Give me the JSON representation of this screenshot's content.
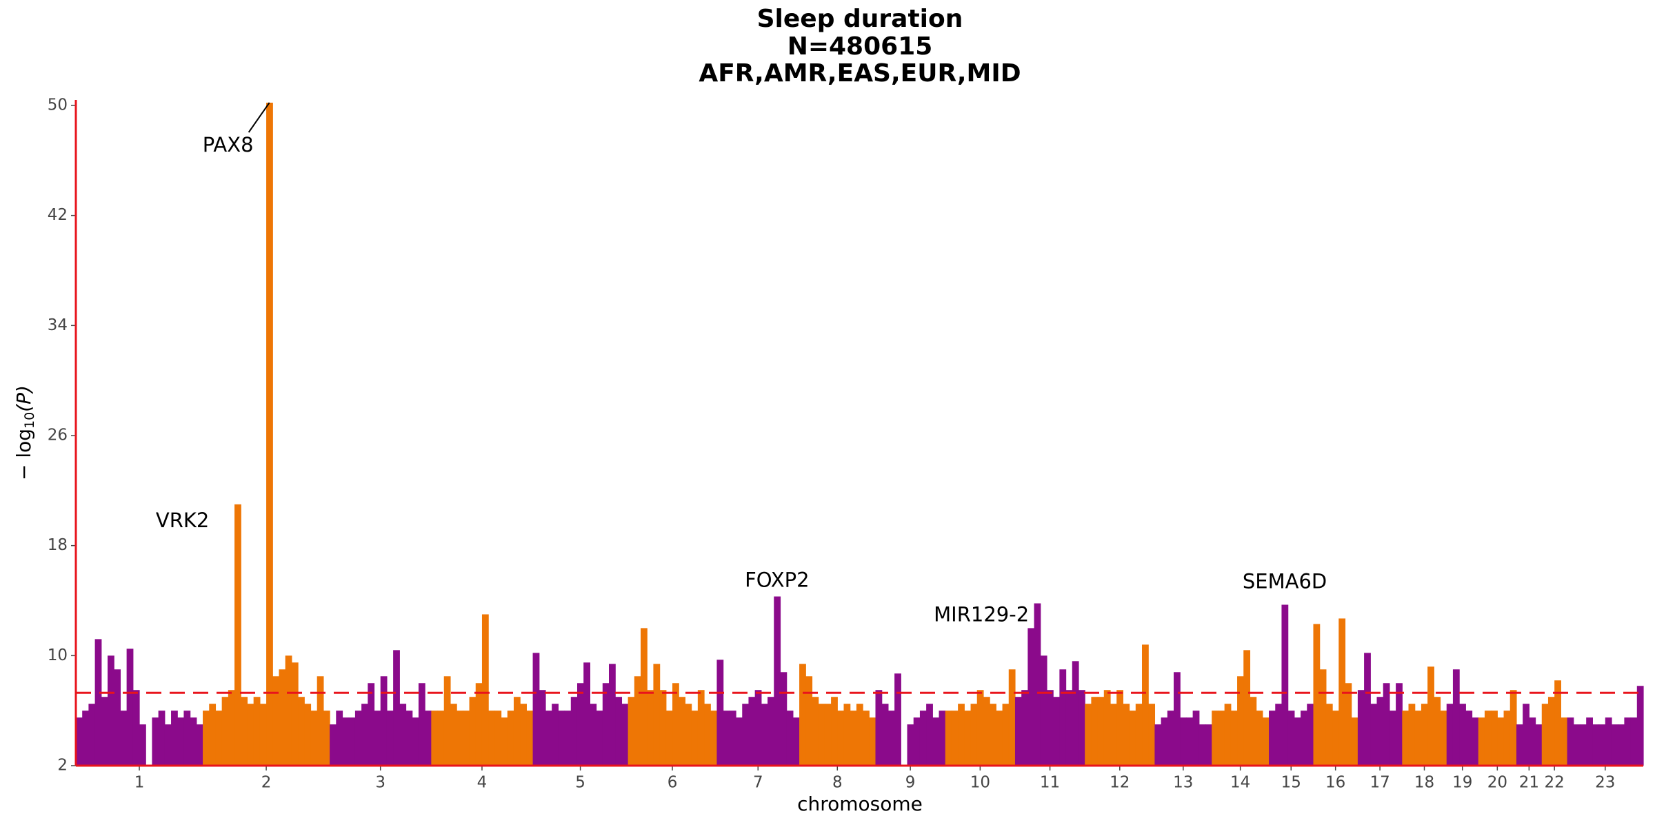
{
  "chart_data": {
    "type": "manhattan",
    "title": [
      "Sleep duration",
      "N=480615",
      "AFR,AMR,EAS,EUR,MID"
    ],
    "x_label": "chromosome",
    "y_label": {
      "prefix": "− log",
      "sub": "10",
      "suffix": "(P)"
    },
    "ylim": [
      2,
      50.4
    ],
    "yticks": [
      2,
      10,
      18,
      26,
      34,
      42,
      50
    ],
    "threshold": 7.3,
    "threshold_color": "#e8141c",
    "axis_color": "#e8141c",
    "series": [
      {
        "name": "1",
        "color": "#8b0a8b",
        "values": [
          5.5,
          6,
          6.5,
          11.2,
          7,
          10,
          9,
          6,
          10.5,
          7.5,
          5,
          null,
          5.5,
          6,
          5,
          6,
          5.5,
          6,
          5.5,
          5
        ]
      },
      {
        "name": "2",
        "color": "#ee7605",
        "values": [
          6,
          6.5,
          6,
          7,
          7.5,
          21,
          7,
          6.5,
          7,
          6.5,
          50.2,
          8.5,
          9,
          10,
          9.5,
          7,
          6.5,
          6,
          8.5,
          6
        ]
      },
      {
        "name": "3",
        "color": "#8b0a8b",
        "values": [
          5,
          6,
          5.5,
          5.5,
          6,
          6.5,
          8,
          6,
          8.5,
          6,
          10.4,
          6.5,
          6,
          5.5,
          8,
          6
        ]
      },
      {
        "name": "4",
        "color": "#ee7605",
        "values": [
          6,
          6,
          8.5,
          6.5,
          6,
          6,
          7,
          8,
          13,
          6,
          6,
          5.5,
          6,
          7,
          6.5,
          6
        ]
      },
      {
        "name": "5",
        "color": "#8b0a8b",
        "values": [
          10.2,
          7.5,
          6,
          6.5,
          6,
          6,
          7,
          8,
          9.5,
          6.5,
          6,
          8,
          9.4,
          7,
          6.5
        ]
      },
      {
        "name": "6",
        "color": "#ee7605",
        "values": [
          7,
          8.5,
          12,
          7.5,
          9.4,
          7.5,
          6,
          8,
          7,
          6.5,
          6,
          7.5,
          6.5,
          6
        ]
      },
      {
        "name": "7",
        "color": "#8b0a8b",
        "values": [
          9.7,
          6,
          6,
          5.5,
          6.5,
          7,
          7.5,
          6.5,
          7,
          14.3,
          8.8,
          6,
          5.5
        ]
      },
      {
        "name": "8",
        "color": "#ee7605",
        "values": [
          9.4,
          8.5,
          7,
          6.5,
          6.5,
          7,
          6,
          6.5,
          6,
          6.5,
          6,
          5.5
        ]
      },
      {
        "name": "9",
        "color": "#8b0a8b",
        "values": [
          7.5,
          6.5,
          6,
          8.7,
          null,
          5,
          5.5,
          6,
          6.5,
          5.5,
          6
        ]
      },
      {
        "name": "10",
        "color": "#ee7605",
        "values": [
          6,
          6,
          6.5,
          6,
          6.5,
          7.5,
          7,
          6.5,
          6,
          6.5,
          9
        ]
      },
      {
        "name": "11",
        "color": "#8b0a8b",
        "values": [
          7,
          7.5,
          12,
          13.8,
          10,
          7.5,
          7,
          9,
          7.5,
          9.6,
          7.5
        ]
      },
      {
        "name": "12",
        "color": "#ee7605",
        "values": [
          6.5,
          7,
          7,
          7.5,
          6.5,
          7.5,
          6.5,
          6,
          6.5,
          10.8,
          6.5
        ]
      },
      {
        "name": "13",
        "color": "#8b0a8b",
        "values": [
          5,
          5.5,
          6,
          8.8,
          5.5,
          5.5,
          6,
          5,
          5
        ]
      },
      {
        "name": "14",
        "color": "#ee7605",
        "values": [
          6,
          6,
          6.5,
          6,
          8.5,
          10.4,
          7,
          6,
          5.5
        ]
      },
      {
        "name": "15",
        "color": "#8b0a8b",
        "values": [
          6,
          6.5,
          13.7,
          6,
          5.5,
          6,
          6.5
        ]
      },
      {
        "name": "16",
        "color": "#ee7605",
        "values": [
          12.3,
          9,
          6.5,
          6,
          12.7,
          8,
          5.5
        ]
      },
      {
        "name": "17",
        "color": "#8b0a8b",
        "values": [
          7.5,
          10.2,
          6.5,
          7,
          8,
          6,
          8
        ]
      },
      {
        "name": "18",
        "color": "#ee7605",
        "values": [
          6,
          6.5,
          6,
          6.5,
          9.2,
          7,
          6
        ]
      },
      {
        "name": "19",
        "color": "#8b0a8b",
        "values": [
          6.5,
          9,
          6.5,
          6,
          5.5
        ]
      },
      {
        "name": "20",
        "color": "#ee7605",
        "values": [
          5.5,
          6,
          6,
          5.5,
          6,
          7.5
        ]
      },
      {
        "name": "21",
        "color": "#8b0a8b",
        "values": [
          5,
          6.5,
          5.5,
          5
        ]
      },
      {
        "name": "22",
        "color": "#ee7605",
        "values": [
          6.5,
          7,
          8.2,
          5.5
        ]
      },
      {
        "name": "23",
        "color": "#8b0a8b",
        "values": [
          5.5,
          5,
          5,
          5.5,
          5,
          5,
          5.5,
          5,
          5,
          5.5,
          5.5,
          7.8
        ]
      }
    ],
    "annotations": [
      {
        "text": "PAX8",
        "series": "2",
        "value": 50.2
      },
      {
        "text": "VRK2",
        "series": "2",
        "value": 21
      },
      {
        "text": "FOXP2",
        "series": "7",
        "value": 14.3
      },
      {
        "text": "MIR129-2",
        "series": "11",
        "value": 13.8
      },
      {
        "text": "SEMA6D",
        "series": "15",
        "value": 13.7
      }
    ]
  }
}
